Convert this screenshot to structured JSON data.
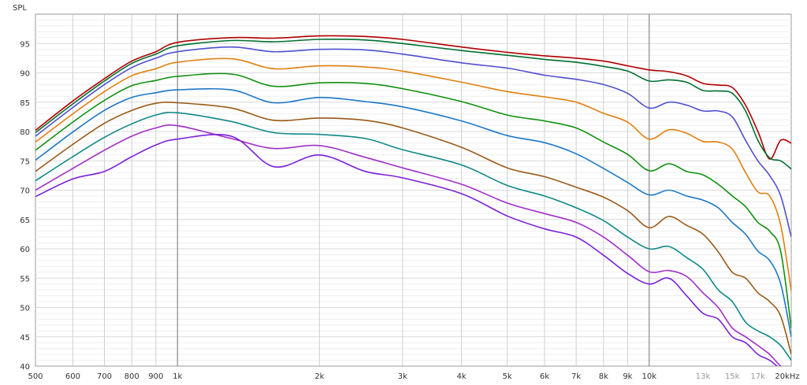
{
  "chart_data": {
    "type": "line",
    "ylabel": "SPL",
    "xlabel": "",
    "x_scale": "log",
    "xlim": [
      500,
      20000
    ],
    "ylim": [
      40,
      100
    ],
    "grid": true,
    "y_ticks": [
      40,
      45,
      50,
      55,
      60,
      65,
      70,
      75,
      80,
      85,
      90,
      95
    ],
    "x_ticks": [
      {
        "value": 500,
        "label": "500",
        "style": "major"
      },
      {
        "value": 600,
        "label": "600",
        "style": "major"
      },
      {
        "value": 700,
        "label": "700",
        "style": "major"
      },
      {
        "value": 800,
        "label": "800",
        "style": "major"
      },
      {
        "value": 900,
        "label": "900",
        "style": "major"
      },
      {
        "value": 1000,
        "label": "1k",
        "style": "major"
      },
      {
        "value": 2000,
        "label": "2k",
        "style": "major"
      },
      {
        "value": 3000,
        "label": "3k",
        "style": "major"
      },
      {
        "value": 4000,
        "label": "4k",
        "style": "major"
      },
      {
        "value": 5000,
        "label": "5k",
        "style": "major"
      },
      {
        "value": 6000,
        "label": "6k",
        "style": "major"
      },
      {
        "value": 7000,
        "label": "7k",
        "style": "major"
      },
      {
        "value": 8000,
        "label": "8k",
        "style": "major"
      },
      {
        "value": 9000,
        "label": "9k",
        "style": "major"
      },
      {
        "value": 10000,
        "label": "10k",
        "style": "major"
      },
      {
        "value": 13000,
        "label": "13k",
        "style": "minor"
      },
      {
        "value": 15000,
        "label": "15k",
        "style": "minor"
      },
      {
        "value": 17000,
        "label": "17k",
        "style": "minor"
      },
      {
        "value": 20000,
        "label": "20kHz",
        "style": "major"
      }
    ],
    "x": [
      500,
      600,
      700,
      800,
      900,
      1000,
      1300,
      1600,
      2000,
      2500,
      3000,
      4000,
      5000,
      6000,
      7000,
      8000,
      9000,
      10000,
      11000,
      12000,
      13000,
      14000,
      15000,
      16000,
      17000,
      18000,
      19000,
      20000
    ],
    "series": [
      {
        "color": "#b00000",
        "values": [
          80.2,
          85.2,
          89.0,
          92.0,
          93.6,
          95.2,
          96.0,
          95.9,
          96.3,
          96.2,
          95.7,
          94.4,
          93.5,
          92.9,
          92.5,
          92.0,
          91.2,
          90.5,
          90.2,
          89.5,
          88.2,
          87.9,
          87.5,
          84.5,
          80.0,
          75.3,
          78.5,
          78.0
        ]
      },
      {
        "color": "#007030",
        "values": [
          79.8,
          84.7,
          88.6,
          91.6,
          93.2,
          94.6,
          95.5,
          95.3,
          95.7,
          95.6,
          95.0,
          93.8,
          93.0,
          92.3,
          91.8,
          91.1,
          90.3,
          88.6,
          88.8,
          88.4,
          87.0,
          86.9,
          86.5,
          83.5,
          78.5,
          75.5,
          75.0,
          73.6
        ]
      },
      {
        "color": "#5050d0",
        "values": [
          79.2,
          84.1,
          88.0,
          90.9,
          92.5,
          93.6,
          94.4,
          93.6,
          94.0,
          93.9,
          93.2,
          91.7,
          90.8,
          89.6,
          88.9,
          88.0,
          86.5,
          84.0,
          85.0,
          84.5,
          83.5,
          83.5,
          82.5,
          78.5,
          75.0,
          72.5,
          69.0,
          62.0
        ]
      },
      {
        "color": "#e08010",
        "values": [
          78.2,
          83.0,
          86.8,
          89.5,
          90.7,
          91.8,
          92.4,
          90.7,
          91.2,
          91.0,
          90.3,
          88.4,
          86.8,
          85.9,
          85.0,
          83.1,
          81.6,
          78.7,
          80.3,
          79.7,
          78.3,
          78.2,
          77.0,
          73.0,
          69.7,
          69.0,
          64.0,
          52.8
        ]
      },
      {
        "color": "#109010",
        "values": [
          76.8,
          81.6,
          85.3,
          87.8,
          88.7,
          89.4,
          89.8,
          87.7,
          88.3,
          88.2,
          87.3,
          85.1,
          82.8,
          81.8,
          80.6,
          78.2,
          76.1,
          73.3,
          74.5,
          73.2,
          72.6,
          71.0,
          69.0,
          67.2,
          64.5,
          63.0,
          59.5,
          46.5
        ]
      },
      {
        "color": "#1c78c8",
        "values": [
          75.1,
          79.9,
          83.6,
          85.8,
          86.6,
          87.1,
          87.1,
          84.9,
          85.8,
          85.1,
          84.2,
          81.8,
          79.3,
          78.1,
          76.2,
          73.7,
          71.3,
          69.2,
          70.0,
          69.0,
          68.3,
          67.0,
          64.5,
          62.5,
          59.6,
          58.0,
          54.0,
          45.0
        ]
      },
      {
        "color": "#9a5a18",
        "values": [
          73.2,
          77.8,
          81.4,
          83.6,
          84.8,
          84.9,
          84.0,
          81.9,
          82.3,
          81.9,
          80.6,
          77.3,
          73.8,
          72.3,
          70.5,
          68.8,
          66.5,
          63.6,
          65.5,
          64.0,
          62.5,
          59.5,
          56.0,
          55.0,
          52.5,
          51.0,
          48.5,
          42.0
        ]
      },
      {
        "color": "#108888",
        "values": [
          71.6,
          75.7,
          79.0,
          81.3,
          82.8,
          83.2,
          81.7,
          79.8,
          79.5,
          78.8,
          76.9,
          74.3,
          70.8,
          69.0,
          67.0,
          64.8,
          62.0,
          60.0,
          60.4,
          58.5,
          56.5,
          53.0,
          51.0,
          47.5,
          46.0,
          45.0,
          43.5,
          41.0
        ]
      },
      {
        "color": "#a030c8",
        "values": [
          70.0,
          73.7,
          76.8,
          79.2,
          80.6,
          81.0,
          78.8,
          77.1,
          77.6,
          75.6,
          73.8,
          71.0,
          67.8,
          66.0,
          64.5,
          62.0,
          58.9,
          56.1,
          56.3,
          55.3,
          52.5,
          50.0,
          46.5,
          45.0,
          43.5,
          42.0,
          40.0,
          39.0
        ]
      },
      {
        "color": "#7a20d8",
        "values": [
          68.9,
          71.9,
          73.2,
          75.7,
          77.7,
          78.7,
          79.2,
          74.0,
          76.0,
          73.2,
          72.1,
          69.4,
          65.6,
          63.4,
          62.0,
          58.9,
          55.8,
          54.0,
          55.0,
          52.0,
          49.0,
          48.0,
          45.0,
          44.0,
          42.0,
          41.0,
          39.5,
          38.5
        ]
      }
    ]
  }
}
